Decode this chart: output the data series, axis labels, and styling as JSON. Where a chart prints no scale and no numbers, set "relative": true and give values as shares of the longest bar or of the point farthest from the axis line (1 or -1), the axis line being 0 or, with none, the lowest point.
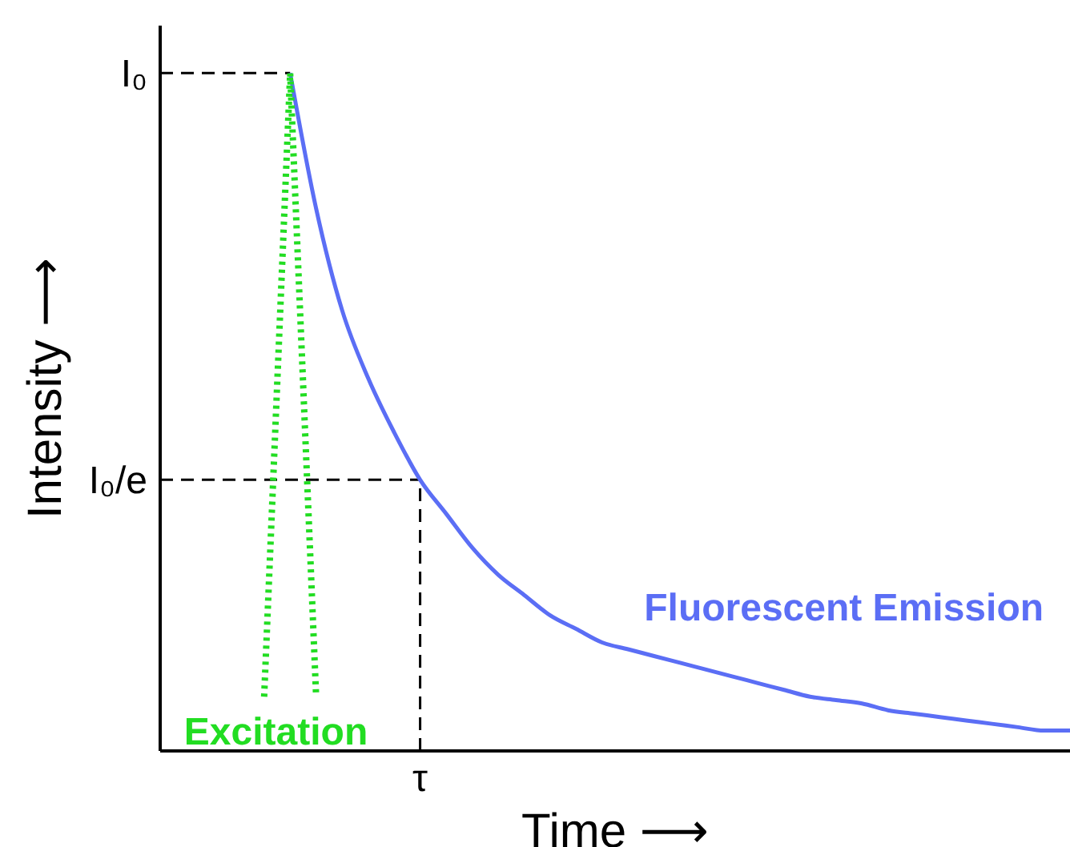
{
  "chart_data": {
    "type": "line",
    "xlabel": "Time ⟶",
    "ylabel": "Intensity ⟶",
    "categories": [
      null,
      null,
      null,
      null,
      null,
      null,
      null,
      null,
      null,
      null,
      null,
      null,
      null,
      null,
      null,
      null,
      null,
      null,
      null,
      null,
      null,
      null,
      null,
      null,
      null,
      null,
      null,
      null,
      null,
      null,
      null,
      null,
      null,
      null,
      null,
      null
    ],
    "relative": true,
    "marker": "none",
    "series": [
      {
        "name": "Fluorescent Emission",
        "color": "#5b6ef5",
        "line_style": "solid",
        "values": [
          null,
          null,
          null,
          null,
          null,
          1,
          0.8,
          0.65,
          0.55,
          0.47,
          0.4,
          0.35,
          0.3,
          0.26,
          0.23,
          0.2,
          0.18,
          0.16,
          0.15,
          0.14,
          0.13,
          0.12,
          0.11,
          0.1,
          0.09,
          0.08,
          0.075,
          0.07,
          0.06,
          0.055,
          0.05,
          0.045,
          0.04,
          0.035,
          0.03,
          0.03
        ]
      },
      {
        "name": "Excitation",
        "color": "#22dd22",
        "line_style": "dotted",
        "values": [
          null,
          null,
          null,
          null,
          0.08,
          1,
          0.08,
          null,
          null,
          null,
          null,
          null,
          null,
          null,
          null,
          null,
          null,
          null,
          null,
          null,
          null,
          null,
          null,
          null,
          null,
          null,
          null,
          null,
          null,
          null,
          null,
          null,
          null,
          null,
          null,
          null
        ]
      }
    ],
    "annotations": [
      {
        "text": "τ",
        "y": 0.4
      }
    ],
    "ref_lines": [
      {
        "axis": "y",
        "value": 1,
        "label": "I₀",
        "line_style": "dashed",
        "color": "#000000"
      },
      {
        "axis": "y",
        "value": 0.4,
        "label": "I₀/e",
        "line_style": "dashed",
        "color": "#000000"
      }
    ]
  }
}
